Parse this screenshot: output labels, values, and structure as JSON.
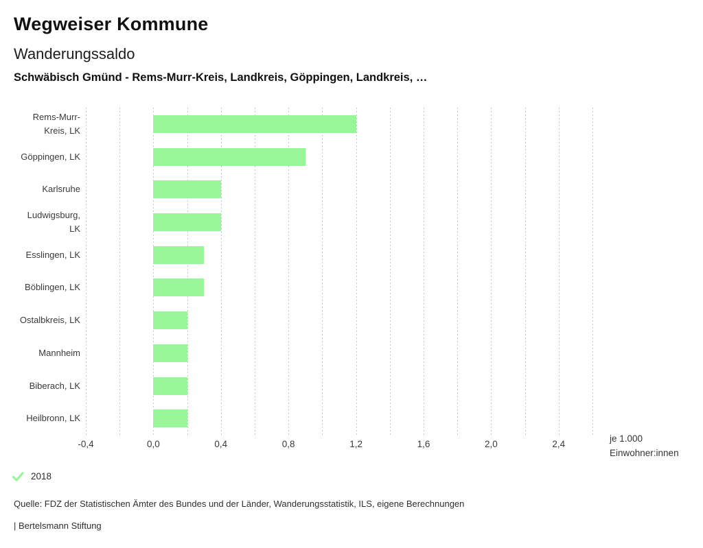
{
  "header": {
    "title": "Wegweiser Kommune",
    "subtitle": "Wanderungssaldo",
    "filter_line": "Schwäbisch Gmünd - Rems-Murr-Kreis, Landkreis, Göppingen, Landkreis, …"
  },
  "chart_data": {
    "type": "bar",
    "orientation": "horizontal",
    "title": "Wanderungssaldo",
    "categories": [
      "Rems-Murr-Kreis, LK",
      "Göppingen, LK",
      "Karlsruhe",
      "Ludwigsburg, LK",
      "Esslingen, LK",
      "Böblingen, LK",
      "Ostalbkreis, LK",
      "Mannheim",
      "Biberach, LK",
      "Heilbronn, LK"
    ],
    "series": [
      {
        "name": "2018",
        "values": [
          1.2,
          0.9,
          0.4,
          0.4,
          0.3,
          0.3,
          0.2,
          0.2,
          0.2,
          0.2
        ]
      }
    ],
    "xlabel": "je 1.000 Einwohner:innen",
    "ylabel": "",
    "xlim": [
      -0.4,
      2.6
    ],
    "grid": true,
    "grid_step": 0.2,
    "xticks": {
      "values": [
        -0.4,
        0.0,
        0.4,
        0.8,
        1.2,
        1.6,
        2.0,
        2.4
      ],
      "labels": [
        "-0,4",
        "0,0",
        "0,4",
        "0,8",
        "1,2",
        "1,6",
        "2,0",
        "2,4"
      ]
    },
    "bar_color": "#98f598",
    "gridline_color": "#c6c6c6",
    "legend_position": "bottom-left"
  },
  "axis_unit": {
    "line1": "je 1.000",
    "line2": "Einwohner:innen"
  },
  "legend": {
    "items": [
      {
        "label": "2018",
        "icon": "check-icon",
        "color": "#98f598"
      }
    ]
  },
  "footer": {
    "source": "Quelle: FDZ der Statistischen Ämter des Bundes und der Länder, Wanderungsstatistik, ILS, eigene Berechnungen",
    "branding": "| Bertelsmann Stiftung"
  }
}
